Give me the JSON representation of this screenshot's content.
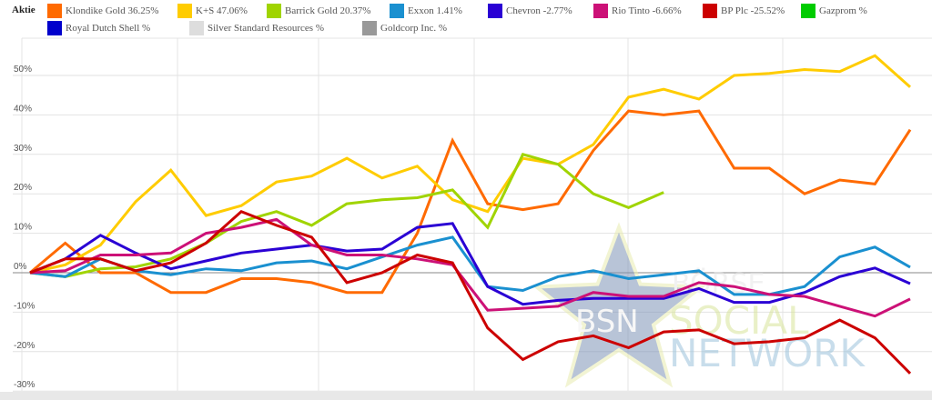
{
  "chart_data": {
    "type": "line",
    "legend_title": "Aktie",
    "legend_placement": "top",
    "ylim": [
      -30,
      60
    ],
    "y_ticks": [
      "50%",
      "40%",
      "30%",
      "20%",
      "10%",
      "0%",
      "-10%",
      "-20%",
      "-30%"
    ],
    "y_tick_values": [
      50,
      40,
      30,
      20,
      10,
      0,
      -10,
      -20,
      -30
    ],
    "grid": true,
    "x_points": 26,
    "series": [
      {
        "name": "Klondike Gold",
        "label": "Klondike Gold  36.25%",
        "color": "#ff6a00",
        "values": [
          0,
          7.5,
          0,
          0,
          -5,
          -5,
          -1.5,
          -1.5,
          -2.5,
          -5,
          -5,
          10,
          33.5,
          17.5,
          16,
          17.5,
          31,
          41,
          40,
          41,
          26.5,
          26.5,
          20,
          23.5,
          22.5,
          36.25
        ]
      },
      {
        "name": "K+S",
        "label": "K+S  47.06%",
        "color": "#ffcc00",
        "values": [
          0,
          2,
          7,
          18,
          26,
          14.5,
          17,
          23,
          24.5,
          29,
          24,
          27,
          18.5,
          15.5,
          29,
          27.5,
          32.5,
          44.5,
          46.5,
          44,
          50,
          50.5,
          51.5,
          51,
          55,
          47.06
        ]
      },
      {
        "name": "Barrick Gold",
        "label": "Barrick Gold  20.37%",
        "color": "#a0d400",
        "values": [
          0,
          -1,
          1,
          1.5,
          3.5,
          7.5,
          13,
          15.5,
          12,
          17.5,
          18.5,
          19,
          21,
          11.5,
          30,
          27.5,
          20,
          16.5,
          20.37,
          null,
          null,
          null,
          null,
          null,
          null,
          null
        ]
      },
      {
        "name": "Exxon",
        "label": "Exxon  1.41%",
        "color": "#1a90d0",
        "values": [
          0,
          -1,
          3.5,
          0.5,
          -0.5,
          1,
          0.5,
          2.5,
          3,
          1,
          4,
          7,
          9,
          -3.5,
          -4.5,
          -1,
          0.5,
          -1.5,
          -0.5,
          0.5,
          -5.5,
          -5.5,
          -3.5,
          4,
          6.5,
          1.41
        ]
      },
      {
        "name": "Chevron",
        "label": "Chevron  -2.77%",
        "color": "#2a00d4",
        "values": [
          0,
          3.5,
          9.5,
          5,
          1,
          3,
          5,
          6,
          7,
          5.5,
          6,
          11.5,
          12.5,
          -3.5,
          -8,
          -7,
          -6.5,
          -6.5,
          -6.5,
          -4,
          -7.5,
          -7.5,
          -5,
          -1,
          1.2,
          -2.77
        ]
      },
      {
        "name": "Rio Tinto",
        "label": "Rio Tinto  -6.66%",
        "color": "#cc1177",
        "values": [
          0,
          0.5,
          4.5,
          4.5,
          5,
          10,
          11.5,
          13.5,
          7,
          4.5,
          4.5,
          3.5,
          2,
          -9.5,
          -9,
          -8.5,
          -5,
          -6,
          -6,
          -2.5,
          -3.5,
          -5.5,
          -6,
          -8.5,
          -11,
          -6.66
        ]
      },
      {
        "name": "BP Plc",
        "label": "BP Plc  -25.52%",
        "color": "#cc0000",
        "values": [
          0,
          3.5,
          3.5,
          0.5,
          2.5,
          7.5,
          15.5,
          12,
          9,
          -2.5,
          0,
          4.5,
          2.5,
          -14,
          -22,
          -17.5,
          -16,
          -19,
          -15,
          -14.5,
          -18,
          -17.5,
          -16.5,
          -12,
          -16.5,
          -25.52
        ]
      },
      {
        "name": "Gazprom",
        "label": "Gazprom  %",
        "color": "#00cc00",
        "values": []
      },
      {
        "name": "Royal Dutch Shell",
        "label": "Royal Dutch Shell  %",
        "color": "#0000cc",
        "values": []
      },
      {
        "name": "Silver Standard Resources",
        "label": "Silver Standard Resources  %",
        "color": "#dddddd",
        "values": []
      },
      {
        "name": "Goldcorp Inc.",
        "label": "Goldcorp Inc.  %",
        "color": "#999999",
        "values": []
      }
    ]
  },
  "watermark": {
    "logo": "BSN",
    "line1": "BÖRSE",
    "line2": "SOCIAL",
    "line3": "NETWORK"
  }
}
